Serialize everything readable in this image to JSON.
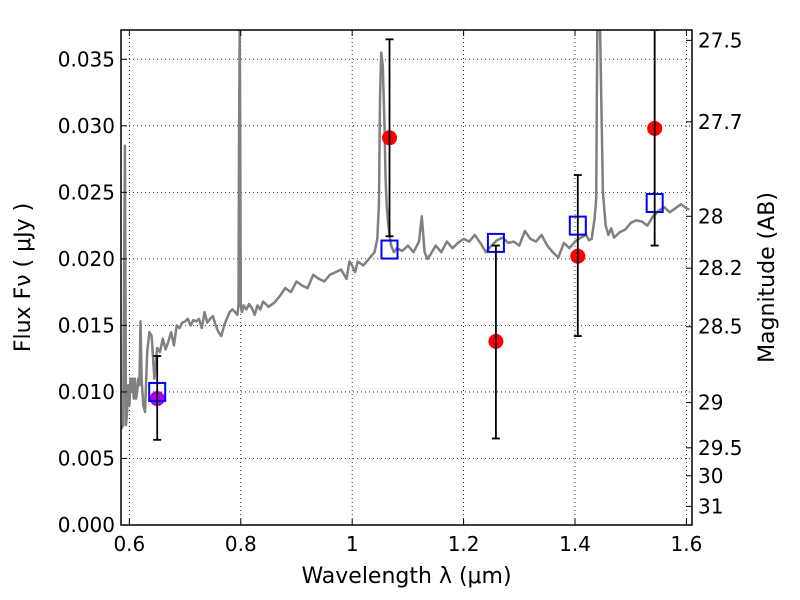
{
  "chart_data": {
    "type": "scatter",
    "xlabel": "Wavelength  λ (μm)",
    "ylabel": "Flux  Fν  ( μJy )",
    "y2label": "Magnitude (AB)",
    "xlim": [
      0.585,
      1.61
    ],
    "ylim": [
      0.0,
      0.0372
    ],
    "grid": true,
    "x_ticks": [
      0.6,
      0.8,
      1.0,
      1.2,
      1.4,
      1.6
    ],
    "x_tick_labels": [
      "0.6",
      "0.8",
      "1",
      "1.2",
      "1.4",
      "1.6"
    ],
    "y_ticks": [
      0.0,
      0.005,
      0.01,
      0.015,
      0.02,
      0.025,
      0.03,
      0.035
    ],
    "y_tick_labels": [
      "0.000",
      "0.005",
      "0.010",
      "0.015",
      "0.020",
      "0.025",
      "0.030",
      "0.035"
    ],
    "mag_ticks": [
      {
        "flux": 0.03642,
        "label": "27.5"
      },
      {
        "flux": 0.0303,
        "label": "27.7"
      },
      {
        "flux": 0.0232,
        "label": "28"
      },
      {
        "flux": 0.0193,
        "label": "28.2"
      },
      {
        "flux": 0.0149,
        "label": "28.5"
      },
      {
        "flux": 0.0092,
        "label": "29"
      },
      {
        "flux": 0.0058,
        "label": "29.5"
      },
      {
        "flux": 0.0037,
        "label": "30"
      },
      {
        "flux": 0.0014,
        "label": "31"
      }
    ],
    "series": [
      {
        "style": "line",
        "color": "#808080",
        "x": [
          0.585,
          0.589,
          0.592,
          0.594,
          0.596,
          0.598,
          0.6,
          0.602,
          0.604,
          0.606,
          0.608,
          0.61,
          0.612,
          0.614,
          0.616,
          0.618,
          0.62,
          0.622,
          0.625,
          0.628,
          0.632,
          0.636,
          0.64,
          0.645,
          0.65,
          0.655,
          0.66,
          0.665,
          0.67,
          0.675,
          0.68,
          0.685,
          0.69,
          0.695,
          0.7,
          0.705,
          0.71,
          0.715,
          0.72,
          0.725,
          0.73,
          0.735,
          0.74,
          0.745,
          0.75,
          0.755,
          0.76,
          0.765,
          0.77,
          0.775,
          0.78,
          0.785,
          0.79,
          0.794,
          0.796,
          0.797,
          0.798,
          0.799,
          0.8,
          0.802,
          0.805,
          0.81,
          0.815,
          0.82,
          0.825,
          0.83,
          0.835,
          0.84,
          0.85,
          0.86,
          0.87,
          0.88,
          0.89,
          0.9,
          0.91,
          0.92,
          0.93,
          0.94,
          0.95,
          0.96,
          0.97,
          0.98,
          0.99,
          0.995,
          1.0,
          1.005,
          1.01,
          1.02,
          1.03,
          1.04,
          1.045,
          1.048,
          1.05,
          1.052,
          1.055,
          1.058,
          1.06,
          1.062,
          1.065,
          1.068,
          1.07,
          1.075,
          1.08,
          1.09,
          1.1,
          1.11,
          1.12,
          1.125,
          1.13,
          1.135,
          1.14,
          1.15,
          1.16,
          1.17,
          1.18,
          1.19,
          1.2,
          1.21,
          1.22,
          1.23,
          1.24,
          1.25,
          1.26,
          1.27,
          1.28,
          1.29,
          1.3,
          1.31,
          1.32,
          1.33,
          1.34,
          1.35,
          1.36,
          1.37,
          1.38,
          1.39,
          1.4,
          1.41,
          1.42,
          1.425,
          1.43,
          1.435,
          1.438,
          1.44,
          1.442,
          1.445,
          1.45,
          1.455,
          1.46,
          1.465,
          1.47,
          1.48,
          1.49,
          1.5,
          1.51,
          1.52,
          1.53,
          1.54,
          1.55,
          1.56,
          1.57,
          1.58,
          1.59,
          1.6,
          1.605
        ],
        "y": [
          0.0072,
          0.0075,
          0.0285,
          0.0075,
          0.0085,
          0.0105,
          0.009,
          0.011,
          0.01,
          0.011,
          0.0095,
          0.011,
          0.0095,
          0.01,
          0.011,
          0.0105,
          0.0153,
          0.011,
          0.009,
          0.0085,
          0.013,
          0.0145,
          0.0142,
          0.011,
          0.0133,
          0.013,
          0.014,
          0.0132,
          0.0138,
          0.0145,
          0.0135,
          0.015,
          0.0148,
          0.0152,
          0.0153,
          0.0155,
          0.015,
          0.0154,
          0.0153,
          0.0155,
          0.0148,
          0.016,
          0.0152,
          0.0155,
          0.0157,
          0.015,
          0.0145,
          0.0142,
          0.015,
          0.0155,
          0.016,
          0.0162,
          0.016,
          0.0158,
          0.0165,
          0.03,
          0.0372,
          0.03,
          0.0165,
          0.016,
          0.0165,
          0.0162,
          0.0166,
          0.0163,
          0.0158,
          0.0165,
          0.0162,
          0.0168,
          0.0164,
          0.0167,
          0.0172,
          0.0178,
          0.0175,
          0.0183,
          0.018,
          0.0178,
          0.0188,
          0.0185,
          0.0183,
          0.0188,
          0.019,
          0.0192,
          0.0185,
          0.0198,
          0.0195,
          0.019,
          0.0198,
          0.0195,
          0.02,
          0.0205,
          0.0215,
          0.024,
          0.032,
          0.0355,
          0.0345,
          0.03,
          0.026,
          0.024,
          0.0225,
          0.0215,
          0.021,
          0.0205,
          0.0208,
          0.0206,
          0.021,
          0.0205,
          0.0213,
          0.0232,
          0.0205,
          0.02,
          0.0203,
          0.021,
          0.0205,
          0.0213,
          0.0208,
          0.0212,
          0.0215,
          0.0213,
          0.0218,
          0.0212,
          0.0205,
          0.021,
          0.0214,
          0.0216,
          0.0212,
          0.0213,
          0.021,
          0.0221,
          0.0215,
          0.0213,
          0.0218,
          0.021,
          0.0205,
          0.0201,
          0.0212,
          0.0208,
          0.0213,
          0.0216,
          0.0218,
          0.0214,
          0.0215,
          0.023,
          0.0245,
          0.0372,
          0.0372,
          0.0372,
          0.025,
          0.0225,
          0.0218,
          0.0223,
          0.0216,
          0.022,
          0.0222,
          0.0227,
          0.0229,
          0.0228,
          0.0225,
          0.0232,
          0.0236,
          0.0239,
          0.0235,
          0.0238,
          0.0241,
          0.0238,
          0.0237
        ]
      },
      {
        "style": "points",
        "color": "#ff0000",
        "marker": "circle",
        "x": [
          1.067,
          1.258,
          1.405,
          1.543
        ],
        "y": [
          0.0291,
          0.0138,
          0.0202,
          0.0298
        ]
      },
      {
        "style": "points",
        "color": "#aa00ee",
        "marker": "circle",
        "x": [
          0.65
        ],
        "y": [
          0.0095
        ]
      },
      {
        "style": "points",
        "color": "#0000ff",
        "marker": "open-square",
        "x": [
          0.65,
          1.067,
          1.258,
          1.405,
          1.543
        ],
        "y": [
          0.01,
          0.0207,
          0.0212,
          0.0225,
          0.0242
        ]
      },
      {
        "style": "errorbars",
        "color": "#000000",
        "x": [
          0.65,
          1.067,
          1.258,
          1.405,
          1.543
        ],
        "y_low": [
          0.0064,
          0.0217,
          0.0065,
          0.0142,
          0.021
        ],
        "y_high": [
          0.0127,
          0.0365,
          0.021,
          0.0263,
          0.0372
        ]
      }
    ]
  }
}
